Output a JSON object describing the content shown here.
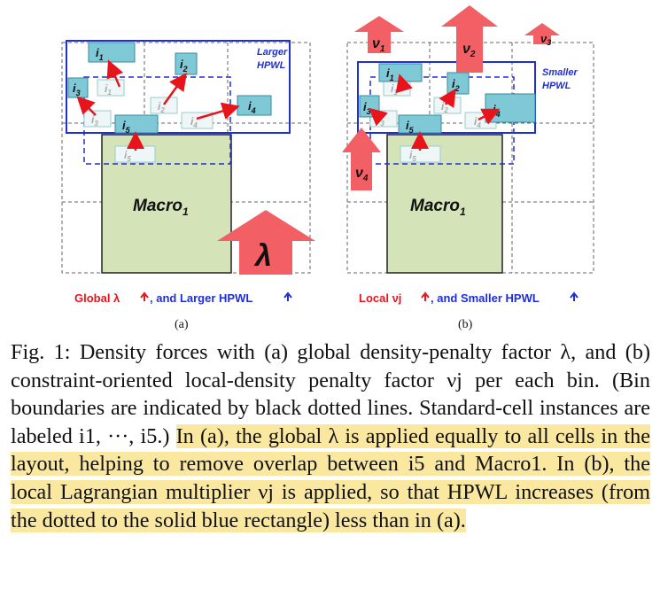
{
  "panel_a": {
    "label": "(a)",
    "macro_label": "Macro",
    "macro_sub": "1",
    "hpwl_note_line1": "Larger",
    "hpwl_note_line2": "HPWL",
    "lambda_symbol": "λ",
    "footer_prefix": "Global λ",
    "footer_suffix": ", and Larger HPWL",
    "cells": [
      {
        "name": "i",
        "sub": "1"
      },
      {
        "name": "i",
        "sub": "2"
      },
      {
        "name": "i",
        "sub": "3"
      },
      {
        "name": "i",
        "sub": "4"
      },
      {
        "name": "i",
        "sub": "5"
      }
    ]
  },
  "panel_b": {
    "label": "(b)",
    "macro_label": "Macro",
    "macro_sub": "1",
    "hpwl_note_line1": "Smaller",
    "hpwl_note_line2": "HPWL",
    "force_labels": [
      "ν1",
      "ν2",
      "ν3",
      "ν4"
    ],
    "footer_prefix": "Local νj",
    "footer_suffix": ", and Smaller HPWL"
  },
  "caption": {
    "fig_label": "Fig. 1:",
    "text_plain": "Density forces with (a) global density-penalty factor λ, and (b) constraint-oriented local-density penalty factor νj per each bin. (Bin boundaries are indicated by black dotted lines. Standard-cell instances are labeled i1, ···, i5.)",
    "text_highlight": "In (a), the global λ is applied equally to all cells in the layout, helping to remove overlap between i5 and Macro1. In (b), the local Lagrangian multiplier νj is applied, so that HPWL increases (from the dotted to the solid blue rectangle) less than in (a)."
  },
  "colors": {
    "blue": "#1f2fd6",
    "red": "#e8141c",
    "macro_fill": "#d5e3b8",
    "cell_fill": "#7fc8d6",
    "highlight": "#fbe8a0"
  }
}
